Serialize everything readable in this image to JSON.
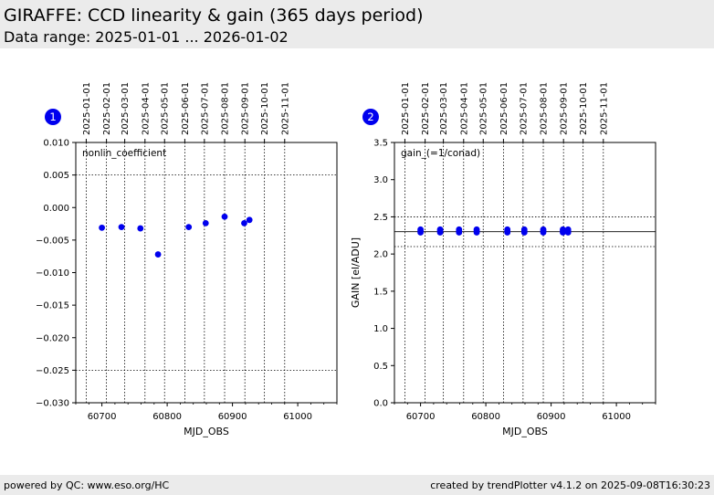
{
  "header": {
    "title": "GIRAFFE: CCD linearity & gain (365 days period)",
    "subtitle": "Data range: 2025-01-01 ... 2026-01-02"
  },
  "footer": {
    "left": "powered by QC: www.eso.org/HC",
    "right": "created by trendPlotter v4.1.2 on 2025-09-08T16:30:23"
  },
  "colors": {
    "marker": "#0000ee",
    "badge": "#0000ee",
    "header_bg": "#ebebeb"
  },
  "chart_data": [
    {
      "type": "scatter",
      "badge": "1",
      "annotation": "nonlin_coefficient",
      "xlabel": "MJD_OBS",
      "ylabel": "",
      "xlim": [
        60660,
        61060
      ],
      "ylim": [
        -0.03,
        0.01
      ],
      "x_ticks": [
        60700,
        60800,
        60900,
        61000
      ],
      "x_tick_labels": [
        "60700",
        "60800",
        "60900",
        "61000"
      ],
      "y_ticks": [
        -0.03,
        -0.025,
        -0.02,
        -0.015,
        -0.01,
        -0.005,
        0.0,
        0.005,
        0.01
      ],
      "y_tick_labels": [
        "−0.030",
        "−0.025",
        "−0.020",
        "−0.015",
        "−0.010",
        "−0.005",
        "0.000",
        "0.005",
        "0.010"
      ],
      "date_ticks_mjd": [
        60676,
        60707,
        60735,
        60766,
        60796,
        60827,
        60857,
        60888,
        60919,
        60949,
        60980
      ],
      "date_tick_labels": [
        "2025-01-01",
        "2025-02-01",
        "2025-03-01",
        "2025-04-01",
        "2025-05-01",
        "2025-06-01",
        "2025-07-01",
        "2025-08-01",
        "2025-09-01",
        "2025-10-01",
        "2025-11-01"
      ],
      "hlines": [
        0.005,
        -0.025
      ],
      "points": [
        {
          "x": 60700,
          "y": -0.0031
        },
        {
          "x": 60730,
          "y": -0.003
        },
        {
          "x": 60759,
          "y": -0.0032
        },
        {
          "x": 60786,
          "y": -0.0072
        },
        {
          "x": 60833,
          "y": -0.003
        },
        {
          "x": 60859,
          "y": -0.0024
        },
        {
          "x": 60888,
          "y": -0.0014
        },
        {
          "x": 60918,
          "y": -0.0024
        },
        {
          "x": 60926,
          "y": -0.0019
        }
      ]
    },
    {
      "type": "scatter",
      "badge": "2",
      "annotation": "gain_(=1/conad)",
      "xlabel": "MJD_OBS",
      "ylabel": "GAIN [el/ADU]",
      "xlim": [
        60660,
        61060
      ],
      "ylim": [
        0.0,
        3.5
      ],
      "x_ticks": [
        60700,
        60800,
        60900,
        61000
      ],
      "x_tick_labels": [
        "60700",
        "60800",
        "60900",
        "61000"
      ],
      "y_ticks": [
        0.0,
        0.5,
        1.0,
        1.5,
        2.0,
        2.5,
        3.0,
        3.5
      ],
      "y_tick_labels": [
        "0.0",
        "0.5",
        "1.0",
        "1.5",
        "2.0",
        "2.5",
        "3.0",
        "3.5"
      ],
      "date_ticks_mjd": [
        60676,
        60707,
        60735,
        60766,
        60796,
        60827,
        60857,
        60888,
        60919,
        60949,
        60980
      ],
      "date_tick_labels": [
        "2025-01-01",
        "2025-02-01",
        "2025-03-01",
        "2025-04-01",
        "2025-05-01",
        "2025-06-01",
        "2025-07-01",
        "2025-08-01",
        "2025-09-01",
        "2025-10-01",
        "2025-11-01"
      ],
      "hlines_dotted": [
        2.5,
        2.1
      ],
      "hline_solid": 2.3,
      "points": [
        {
          "x": 60700,
          "y": 2.29
        },
        {
          "x": 60700,
          "y": 2.31
        },
        {
          "x": 60700,
          "y": 2.33
        },
        {
          "x": 60730,
          "y": 2.29
        },
        {
          "x": 60730,
          "y": 2.31
        },
        {
          "x": 60730,
          "y": 2.33
        },
        {
          "x": 60759,
          "y": 2.29
        },
        {
          "x": 60759,
          "y": 2.31
        },
        {
          "x": 60759,
          "y": 2.33
        },
        {
          "x": 60786,
          "y": 2.29
        },
        {
          "x": 60786,
          "y": 2.31
        },
        {
          "x": 60786,
          "y": 2.33
        },
        {
          "x": 60833,
          "y": 2.29
        },
        {
          "x": 60833,
          "y": 2.31
        },
        {
          "x": 60833,
          "y": 2.33
        },
        {
          "x": 60859,
          "y": 2.29
        },
        {
          "x": 60859,
          "y": 2.31
        },
        {
          "x": 60859,
          "y": 2.33
        },
        {
          "x": 60888,
          "y": 2.29
        },
        {
          "x": 60888,
          "y": 2.31
        },
        {
          "x": 60888,
          "y": 2.33
        },
        {
          "x": 60918,
          "y": 2.29
        },
        {
          "x": 60918,
          "y": 2.31
        },
        {
          "x": 60918,
          "y": 2.33
        },
        {
          "x": 60926,
          "y": 2.29
        },
        {
          "x": 60926,
          "y": 2.31
        },
        {
          "x": 60926,
          "y": 2.33
        }
      ]
    }
  ]
}
